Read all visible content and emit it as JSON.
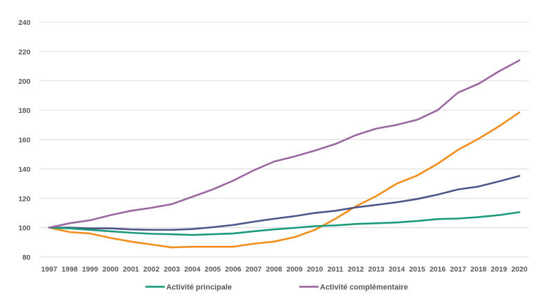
{
  "chart_data": {
    "type": "line",
    "title": "",
    "xlabel": "",
    "ylabel": "",
    "x": [
      "1997",
      "1998",
      "1999",
      "2000",
      "2001",
      "2002",
      "2003",
      "2004",
      "2005",
      "2006",
      "2007",
      "2008",
      "2009",
      "2010",
      "2011",
      "2012",
      "2013",
      "2014",
      "2015",
      "2016",
      "2017",
      "2018",
      "2019",
      "2020"
    ],
    "ylim": [
      80,
      240
    ],
    "yticks": [
      "80",
      "100",
      "120",
      "140",
      "160",
      "180",
      "200",
      "220",
      "240"
    ],
    "grid": true,
    "legend_placement": "bottom",
    "series": [
      {
        "name": "Activité principale",
        "color": "#1a9a7a",
        "values": [
          100,
          99.5,
          98.5,
          97.5,
          96.5,
          95.8,
          95.5,
          95,
          95.5,
          96,
          97.5,
          98.8,
          99.8,
          101,
          101.5,
          102.5,
          103,
          103.5,
          104.5,
          105.8,
          106.2,
          107.2,
          108.5,
          110.5
        ]
      },
      {
        "name": "Activité complémentaire",
        "color": "#9b67a1",
        "values": [
          100,
          103,
          105,
          108.5,
          111.5,
          113.5,
          116,
          121,
          126,
          132,
          139,
          145,
          148.5,
          152.5,
          157,
          163,
          167.5,
          170,
          173.5,
          180,
          192,
          198,
          206.5,
          214
        ]
      },
      {
        "name": "",
        "color": "#f28d1a",
        "values": [
          100,
          97,
          96,
          93,
          90.5,
          88.5,
          86.5,
          87,
          87,
          87,
          89,
          90.5,
          93.5,
          98.5,
          106,
          114.5,
          121.5,
          130,
          135.5,
          143.5,
          153,
          160.5,
          169,
          178.5
        ]
      },
      {
        "name": "",
        "color": "#4d5689",
        "values": [
          100,
          100,
          99.5,
          99.5,
          98.8,
          98.5,
          98.5,
          99,
          100.3,
          101.8,
          104,
          106,
          107.8,
          110,
          111.5,
          113.8,
          115.5,
          117.3,
          119.5,
          122.5,
          126,
          128,
          131.5,
          135.2
        ]
      }
    ],
    "draw_order": [
      2,
      3,
      0,
      1
    ]
  }
}
